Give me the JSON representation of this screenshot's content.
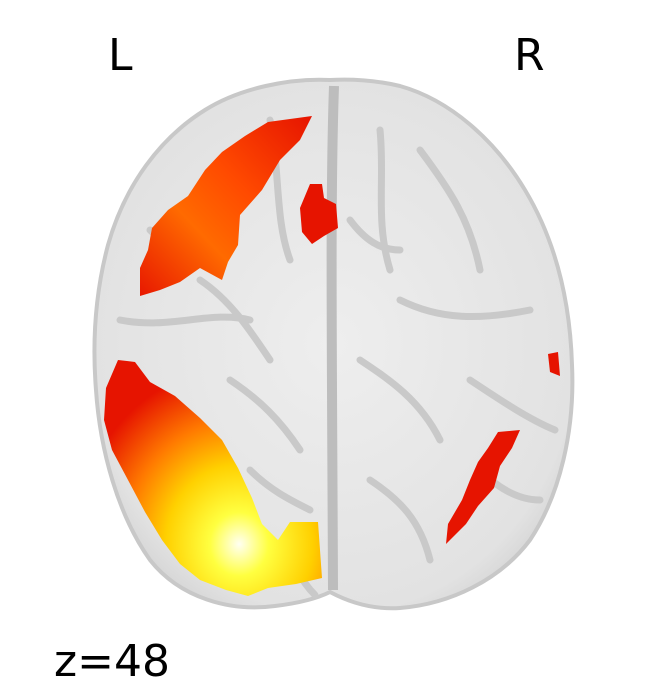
{
  "orientation": {
    "left_label": "L",
    "right_label": "R"
  },
  "slice": {
    "label": "z=48"
  },
  "colors": {
    "background": "#ffffff",
    "brain_gray": "#e4e4e4",
    "sulcus_gray": "#c4c4c4",
    "activation_red": "#e61400",
    "activation_orange": "#ff6a00",
    "activation_yellow": "#ffe600",
    "activation_peak": "#ffffd8"
  }
}
